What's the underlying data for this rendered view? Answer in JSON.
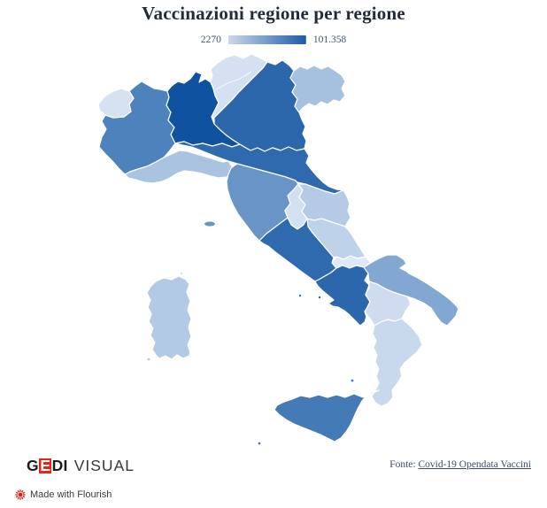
{
  "title": "Vaccinazioni regione per regione",
  "legend": {
    "min_label": "2270",
    "max_label": "101.358",
    "min_color": "#cdd9ec",
    "max_color": "#1d5ba7"
  },
  "footer": {
    "brand": {
      "g": "G",
      "e": "E",
      "di": "DI",
      "visual": "VISUAL",
      "red": "#e2261d"
    },
    "source_prefix": "Fonte: ",
    "source_link_text": "Covid-19 Opendata Vaccini"
  },
  "attribution": {
    "label": "Made with Flourish",
    "icon_color": "#e01f19"
  },
  "chart_data": {
    "type": "choropleth-map",
    "geography": "Italy, 20 regions",
    "title": "Vaccinazioni regione per regione",
    "legend_position": "top-center",
    "scale": {
      "min": 2270,
      "max": 101358,
      "min_label": "2270",
      "max_label": "101.358",
      "min_color": "#cdd9ec",
      "max_color": "#1d5ba7"
    },
    "note": "Only the two scale endpoints are labeled in the image; per-region values are estimated from each region's fill colour on the legend gradient.",
    "regions": [
      {
        "id": "lombardia",
        "name": "Lombardia",
        "fill": "#0e52a0",
        "value_estimate": 101358
      },
      {
        "id": "veneto",
        "name": "Veneto",
        "fill": "#2c67ac",
        "value_estimate": 88000
      },
      {
        "id": "campania",
        "name": "Campania",
        "fill": "#2c67ac",
        "value_estimate": 88000
      },
      {
        "id": "emilia",
        "name": "Emilia-Romagna",
        "fill": "#2f6aae",
        "value_estimate": 85000
      },
      {
        "id": "lazio",
        "name": "Lazio",
        "fill": "#2f6aae",
        "value_estimate": 85000
      },
      {
        "id": "sicilia",
        "name": "Sicilia",
        "fill": "#447bb7",
        "value_estimate": 78000
      },
      {
        "id": "piemonte",
        "name": "Piemonte",
        "fill": "#4d82bc",
        "value_estimate": 72000
      },
      {
        "id": "toscana",
        "name": "Toscana",
        "fill": "#6894c6",
        "value_estimate": 58000
      },
      {
        "id": "puglia",
        "name": "Puglia",
        "fill": "#82a7d1",
        "value_estimate": 45000
      },
      {
        "id": "friuli",
        "name": "Friuli-Venezia Giulia",
        "fill": "#a6c0df",
        "value_estimate": 29000
      },
      {
        "id": "liguria",
        "name": "Liguria",
        "fill": "#a9c3e1",
        "value_estimate": 28000
      },
      {
        "id": "marche",
        "name": "Marche",
        "fill": "#b4cae5",
        "value_estimate": 23000
      },
      {
        "id": "sardegna",
        "name": "Sardegna",
        "fill": "#b3cae5",
        "value_estimate": 23000
      },
      {
        "id": "abruzzo",
        "name": "Abruzzo",
        "fill": "#bed2ea",
        "value_estimate": 19000
      },
      {
        "id": "calabria",
        "name": "Calabria",
        "fill": "#c8d9ee",
        "value_estimate": 15000
      },
      {
        "id": "basilicata",
        "name": "Basilicata",
        "fill": "#cfdcf0",
        "value_estimate": 12000
      },
      {
        "id": "umbria",
        "name": "Umbria",
        "fill": "#d3e0f1",
        "value_estimate": 10000
      },
      {
        "id": "trentino",
        "name": "Trentino-Alto Adige",
        "fill": "#d5e1f1",
        "value_estimate": 9500
      },
      {
        "id": "vda",
        "name": "Valle d'Aosta",
        "fill": "#d6e2f2",
        "value_estimate": 9000
      },
      {
        "id": "molise",
        "name": "Molise",
        "fill": "#dfe8f6",
        "value_estimate": 2270
      }
    ]
  }
}
